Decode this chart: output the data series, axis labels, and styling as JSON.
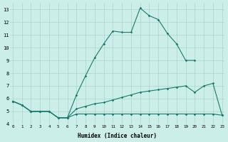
{
  "xlabel": "Humidex (Indice chaleur)",
  "bg_color": "#cceee8",
  "grid_color": "#aad4ce",
  "line_color": "#1a7a6e",
  "line1_x": [
    0,
    1,
    2,
    3,
    4,
    5,
    6,
    7,
    8,
    9,
    10,
    11,
    12,
    13,
    14,
    15,
    16,
    17,
    18,
    19,
    20
  ],
  "line1_y": [
    5.8,
    5.5,
    5.0,
    5.0,
    5.0,
    4.5,
    4.5,
    6.3,
    7.8,
    9.2,
    10.3,
    11.3,
    11.2,
    11.2,
    13.1,
    12.5,
    12.2,
    11.1,
    10.3,
    9.0,
    9.0
  ],
  "line2_x": [
    0,
    1,
    2,
    3,
    4,
    5,
    6,
    7,
    8,
    9,
    10,
    11,
    12,
    13,
    14,
    15,
    16,
    17,
    18,
    19,
    20,
    21,
    22,
    23
  ],
  "line2_y": [
    5.8,
    5.5,
    5.0,
    5.0,
    5.0,
    4.5,
    4.5,
    4.8,
    4.8,
    4.8,
    4.8,
    4.8,
    4.8,
    4.8,
    4.8,
    4.8,
    4.8,
    4.8,
    4.8,
    4.8,
    4.8,
    4.8,
    4.8,
    4.7
  ],
  "line3_x": [
    0,
    1,
    2,
    3,
    4,
    5,
    6,
    7,
    8,
    9,
    10,
    11,
    12,
    13,
    14,
    15,
    16,
    17,
    18,
    19,
    20,
    21,
    22,
    23
  ],
  "line3_y": [
    5.8,
    5.5,
    5.0,
    5.0,
    5.0,
    4.5,
    4.5,
    5.2,
    5.4,
    5.6,
    5.7,
    5.9,
    6.1,
    6.3,
    6.5,
    6.6,
    6.7,
    6.8,
    6.9,
    7.0,
    6.5,
    7.0,
    7.2,
    4.7
  ],
  "xlim": [
    0,
    23
  ],
  "ylim": [
    4,
    13.5
  ],
  "yticks": [
    4,
    5,
    6,
    7,
    8,
    9,
    10,
    11,
    12,
    13
  ],
  "xticks": [
    0,
    1,
    2,
    3,
    4,
    5,
    6,
    7,
    8,
    9,
    10,
    11,
    12,
    13,
    14,
    15,
    16,
    17,
    18,
    19,
    20,
    21,
    22,
    23
  ]
}
